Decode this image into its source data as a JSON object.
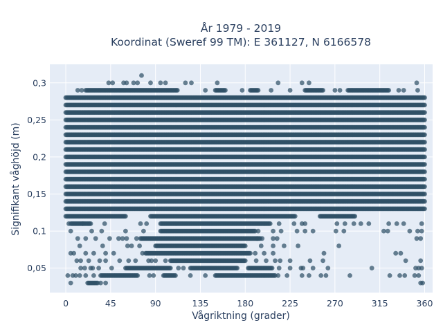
{
  "chart_data": {
    "type": "scatter",
    "title_line1": "År 1979 - 2019",
    "title_line2": "Koordinat (Sweref 99 TM): E 361127, N 6166578",
    "xlabel": "Vågriktning (grader)",
    "ylabel": "Signifikant våghöjd (m)",
    "xlim": [
      -16,
      368
    ],
    "ylim": [
      0.017,
      0.325
    ],
    "xticks": [
      0,
      45,
      90,
      135,
      180,
      225,
      270,
      315,
      360
    ],
    "xtick_labels": [
      "0",
      "45",
      "90",
      "135",
      "180",
      "225",
      "270",
      "315",
      "360"
    ],
    "yticks": [
      0.05,
      0.1,
      0.15,
      0.2,
      0.25,
      0.3
    ],
    "ytick_labels": [
      "0,05",
      "0,1",
      "0,15",
      "0,2",
      "0,25",
      "0,3"
    ],
    "grid": true,
    "marker_color": "#2f5066",
    "background_color": "#e5ecf6",
    "bands": [
      {
        "y": 0.29,
        "ranges": [
          [
            20,
            112
          ],
          [
            150,
            160
          ],
          [
            185,
            193
          ],
          [
            240,
            258
          ],
          [
            283,
            324
          ]
        ]
      },
      {
        "y": 0.28,
        "ranges": [
          [
            0,
            360
          ]
        ]
      },
      {
        "y": 0.27,
        "ranges": [
          [
            0,
            360
          ]
        ]
      },
      {
        "y": 0.26,
        "ranges": [
          [
            0,
            360
          ]
        ]
      },
      {
        "y": 0.25,
        "ranges": [
          [
            0,
            360
          ]
        ]
      },
      {
        "y": 0.24,
        "ranges": [
          [
            0,
            360
          ]
        ]
      },
      {
        "y": 0.23,
        "ranges": [
          [
            0,
            360
          ]
        ]
      },
      {
        "y": 0.22,
        "ranges": [
          [
            0,
            360
          ]
        ]
      },
      {
        "y": 0.21,
        "ranges": [
          [
            0,
            360
          ]
        ]
      },
      {
        "y": 0.2,
        "ranges": [
          [
            0,
            360
          ]
        ]
      },
      {
        "y": 0.19,
        "ranges": [
          [
            0,
            360
          ]
        ]
      },
      {
        "y": 0.18,
        "ranges": [
          [
            0,
            360
          ]
        ]
      },
      {
        "y": 0.17,
        "ranges": [
          [
            0,
            360
          ]
        ]
      },
      {
        "y": 0.16,
        "ranges": [
          [
            0,
            360
          ]
        ]
      },
      {
        "y": 0.15,
        "ranges": [
          [
            0,
            360
          ]
        ]
      },
      {
        "y": 0.14,
        "ranges": [
          [
            0,
            360
          ]
        ]
      },
      {
        "y": 0.13,
        "ranges": [
          [
            0,
            360
          ]
        ]
      },
      {
        "y": 0.12,
        "ranges": [
          [
            0,
            60
          ],
          [
            85,
            230
          ],
          [
            255,
            290
          ]
        ]
      },
      {
        "y": 0.11,
        "ranges": [
          [
            5,
            25
          ],
          [
            95,
            205
          ]
        ]
      },
      {
        "y": 0.1,
        "ranges": [
          [
            95,
            190
          ]
        ]
      },
      {
        "y": 0.09,
        "ranges": [
          [
            75,
            195
          ]
        ]
      },
      {
        "y": 0.08,
        "ranges": [
          [
            90,
            180
          ]
        ]
      },
      {
        "y": 0.07,
        "ranges": [
          [
            80,
            185
          ]
        ]
      },
      {
        "y": 0.06,
        "ranges": [
          [
            105,
            180
          ]
        ]
      },
      {
        "y": 0.05,
        "ranges": [
          [
            60,
            105
          ],
          [
            125,
            172
          ],
          [
            183,
            207
          ]
        ]
      },
      {
        "y": 0.04,
        "ranges": [
          [
            35,
            72
          ],
          [
            98,
            110
          ],
          [
            150,
            210
          ]
        ]
      },
      {
        "y": 0.03,
        "ranges": [
          [
            22,
            32
          ]
        ]
      }
    ],
    "sparse_points": [
      [
        76,
        0.31
      ],
      [
        43,
        0.3
      ],
      [
        47,
        0.3
      ],
      [
        58,
        0.3
      ],
      [
        61,
        0.3
      ],
      [
        68,
        0.3
      ],
      [
        72,
        0.3
      ],
      [
        85,
        0.3
      ],
      [
        95,
        0.3
      ],
      [
        100,
        0.3
      ],
      [
        120,
        0.3
      ],
      [
        126,
        0.3
      ],
      [
        152,
        0.3
      ],
      [
        213,
        0.3
      ],
      [
        237,
        0.3
      ],
      [
        244,
        0.3
      ],
      [
        352,
        0.3
      ],
      [
        12,
        0.29
      ],
      [
        16,
        0.29
      ],
      [
        140,
        0.29
      ],
      [
        177,
        0.29
      ],
      [
        206,
        0.29
      ],
      [
        225,
        0.29
      ],
      [
        270,
        0.29
      ],
      [
        275,
        0.29
      ],
      [
        334,
        0.29
      ],
      [
        339,
        0.29
      ],
      [
        353,
        0.29
      ],
      [
        3,
        0.11
      ],
      [
        17,
        0.11
      ],
      [
        39,
        0.11
      ],
      [
        75,
        0.11
      ],
      [
        81,
        0.11
      ],
      [
        214,
        0.11
      ],
      [
        229,
        0.11
      ],
      [
        237,
        0.11
      ],
      [
        240,
        0.11
      ],
      [
        272,
        0.11
      ],
      [
        280,
        0.11
      ],
      [
        289,
        0.11
      ],
      [
        296,
        0.11
      ],
      [
        304,
        0.11
      ],
      [
        324,
        0.11
      ],
      [
        332,
        0.11
      ],
      [
        339,
        0.11
      ],
      [
        357,
        0.11
      ],
      [
        5,
        0.1
      ],
      [
        26,
        0.1
      ],
      [
        36,
        0.1
      ],
      [
        60,
        0.1
      ],
      [
        78,
        0.1
      ],
      [
        193,
        0.1
      ],
      [
        208,
        0.1
      ],
      [
        216,
        0.1
      ],
      [
        232,
        0.1
      ],
      [
        240,
        0.1
      ],
      [
        248,
        0.1
      ],
      [
        271,
        0.1
      ],
      [
        279,
        0.1
      ],
      [
        319,
        0.1
      ],
      [
        323,
        0.1
      ],
      [
        345,
        0.1
      ],
      [
        353,
        0.1
      ],
      [
        357,
        0.1
      ],
      [
        12,
        0.09
      ],
      [
        20,
        0.09
      ],
      [
        30,
        0.09
      ],
      [
        44,
        0.09
      ],
      [
        53,
        0.09
      ],
      [
        57,
        0.09
      ],
      [
        61,
        0.09
      ],
      [
        71,
        0.09
      ],
      [
        192,
        0.09
      ],
      [
        197,
        0.09
      ],
      [
        208,
        0.09
      ],
      [
        212,
        0.09
      ],
      [
        352,
        0.09
      ],
      [
        356,
        0.09
      ],
      [
        14,
        0.08
      ],
      [
        37,
        0.08
      ],
      [
        62,
        0.08
      ],
      [
        66,
        0.08
      ],
      [
        74,
        0.08
      ],
      [
        196,
        0.08
      ],
      [
        208,
        0.08
      ],
      [
        219,
        0.08
      ],
      [
        233,
        0.08
      ],
      [
        274,
        0.08
      ],
      [
        5,
        0.07
      ],
      [
        8,
        0.07
      ],
      [
        20,
        0.07
      ],
      [
        28,
        0.07
      ],
      [
        40,
        0.07
      ],
      [
        48,
        0.07
      ],
      [
        77,
        0.07
      ],
      [
        190,
        0.07
      ],
      [
        199,
        0.07
      ],
      [
        208,
        0.07
      ],
      [
        259,
        0.07
      ],
      [
        331,
        0.07
      ],
      [
        336,
        0.07
      ],
      [
        11,
        0.06
      ],
      [
        15,
        0.06
      ],
      [
        23,
        0.06
      ],
      [
        34,
        0.06
      ],
      [
        40,
        0.06
      ],
      [
        54,
        0.06
      ],
      [
        63,
        0.06
      ],
      [
        70,
        0.06
      ],
      [
        83,
        0.06
      ],
      [
        86,
        0.06
      ],
      [
        90,
        0.06
      ],
      [
        100,
        0.06
      ],
      [
        191,
        0.06
      ],
      [
        201,
        0.06
      ],
      [
        210,
        0.06
      ],
      [
        215,
        0.06
      ],
      [
        225,
        0.06
      ],
      [
        245,
        0.06
      ],
      [
        258,
        0.06
      ],
      [
        341,
        0.06
      ],
      [
        356,
        0.06
      ],
      [
        15,
        0.05
      ],
      [
        19,
        0.05
      ],
      [
        25,
        0.05
      ],
      [
        27,
        0.05
      ],
      [
        33,
        0.05
      ],
      [
        46,
        0.05
      ],
      [
        113,
        0.05
      ],
      [
        118,
        0.05
      ],
      [
        214,
        0.05
      ],
      [
        225,
        0.05
      ],
      [
        236,
        0.05
      ],
      [
        238,
        0.05
      ],
      [
        248,
        0.05
      ],
      [
        263,
        0.05
      ],
      [
        307,
        0.05
      ],
      [
        351,
        0.05
      ],
      [
        354,
        0.05
      ],
      [
        357,
        0.05
      ],
      [
        2,
        0.04
      ],
      [
        7,
        0.04
      ],
      [
        10,
        0.04
      ],
      [
        14,
        0.04
      ],
      [
        20,
        0.04
      ],
      [
        28,
        0.04
      ],
      [
        84,
        0.04
      ],
      [
        88,
        0.04
      ],
      [
        125,
        0.04
      ],
      [
        140,
        0.04
      ],
      [
        213,
        0.04
      ],
      [
        222,
        0.04
      ],
      [
        237,
        0.04
      ],
      [
        244,
        0.04
      ],
      [
        256,
        0.04
      ],
      [
        261,
        0.04
      ],
      [
        285,
        0.04
      ],
      [
        325,
        0.04
      ],
      [
        335,
        0.04
      ],
      [
        340,
        0.04
      ],
      [
        350,
        0.04
      ],
      [
        354,
        0.04
      ],
      [
        5,
        0.03
      ],
      [
        35,
        0.03
      ],
      [
        40,
        0.03
      ],
      [
        356,
        0.03
      ],
      [
        358,
        0.03
      ]
    ]
  }
}
